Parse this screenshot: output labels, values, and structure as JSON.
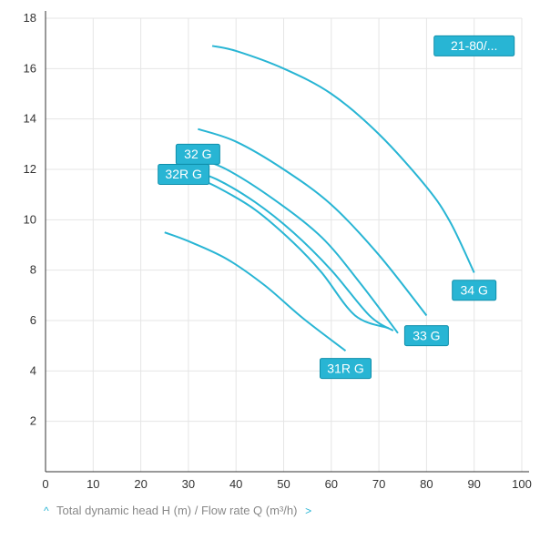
{
  "chart": {
    "type": "line",
    "background_color": "#ffffff",
    "grid_color": "#e5e5e5",
    "axis_color": "#333333",
    "tick_fontsize": 13,
    "label_bg": "#28b5d4",
    "label_fg": "#ffffff",
    "label_border": "#0f8fab",
    "line_color": "#28b5d4",
    "line_width": 2,
    "caption": "Total dynamic head H (m) / Flow rate Q (m³/h)",
    "caption_color": "#888888",
    "x": {
      "min": 0,
      "max": 100,
      "step": 10
    },
    "y": {
      "min": 0,
      "max": 18,
      "step": 2
    },
    "series": [
      {
        "name": "21-80/...",
        "points": [
          [
            35,
            16.9
          ],
          [
            40,
            16.7
          ],
          [
            50,
            16.0
          ],
          [
            60,
            15.0
          ],
          [
            70,
            13.4
          ],
          [
            80,
            11.3
          ],
          [
            85,
            9.9
          ],
          [
            90,
            7.9
          ]
        ],
        "label_at": [
          90,
          16.9
        ]
      },
      {
        "name": "34 G",
        "points": [
          [
            32,
            13.6
          ],
          [
            40,
            13.1
          ],
          [
            50,
            12.0
          ],
          [
            60,
            10.6
          ],
          [
            70,
            8.6
          ],
          [
            80,
            6.2
          ]
        ],
        "label_at": [
          90,
          7.2
        ]
      },
      {
        "name": "33 G",
        "points": [
          [
            31,
            12.5
          ],
          [
            38,
            12.0
          ],
          [
            48,
            10.8
          ],
          [
            58,
            9.3
          ],
          [
            66,
            7.5
          ],
          [
            74,
            5.5
          ]
        ],
        "label_at": [
          80,
          5.4
        ]
      },
      {
        "name": "32 G",
        "points": [
          [
            30,
            12.0
          ],
          [
            36,
            11.6
          ],
          [
            44,
            10.7
          ],
          [
            52,
            9.5
          ],
          [
            60,
            8.0
          ],
          [
            68,
            6.2
          ],
          [
            73,
            5.6
          ]
        ],
        "label_at": [
          32,
          12.6
        ]
      },
      {
        "name": "32R G",
        "points": [
          [
            30,
            11.8
          ],
          [
            36,
            11.3
          ],
          [
            44,
            10.4
          ],
          [
            52,
            9.1
          ],
          [
            58,
            7.9
          ],
          [
            65,
            6.2
          ],
          [
            72,
            5.7
          ]
        ],
        "label_at": [
          29,
          11.8
        ]
      },
      {
        "name": "31R G",
        "points": [
          [
            25,
            9.5
          ],
          [
            30,
            9.15
          ],
          [
            38,
            8.45
          ],
          [
            46,
            7.4
          ],
          [
            54,
            6.1
          ],
          [
            63,
            4.8
          ]
        ],
        "label_at": [
          63,
          4.1
        ]
      }
    ]
  }
}
